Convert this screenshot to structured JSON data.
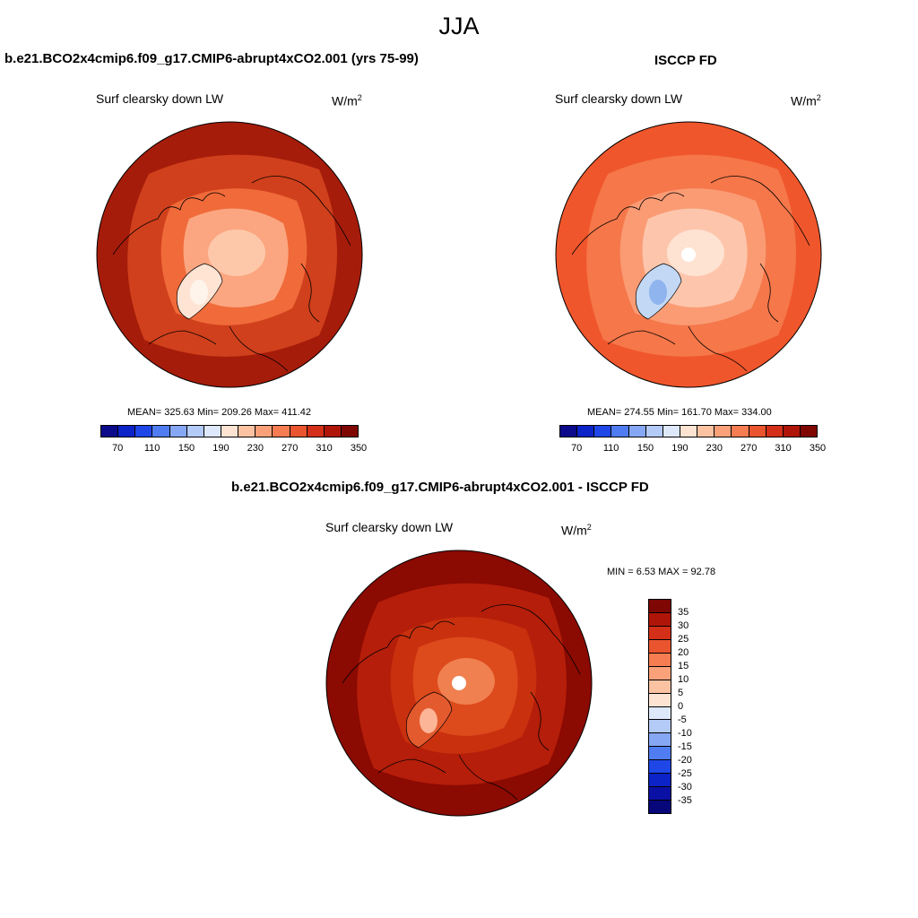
{
  "title": "JJA",
  "panels": [
    {
      "title": "b.e21.BCO2x4cmip6.f09_g17.CMIP6-abrupt4xCO2.001 (yrs 75-99)",
      "var_label": "Surf clearsky down LW",
      "unit_base": "W/m",
      "unit_exp": "2",
      "stats": "MEAN= 325.63  Min= 209.26  Max= 411.42",
      "colors": {
        "outer": "#a61c0a",
        "ring": "#d0401c",
        "mid": "#f06a3a",
        "inner": "#fba680",
        "center": "#fdc8aa",
        "greenland": "#ffe4d4",
        "greenland_core": "#fff4ec"
      }
    },
    {
      "title": "ISCCP FD",
      "var_label": "Surf clearsky down LW",
      "unit_base": "W/m",
      "unit_exp": "2",
      "stats": "MEAN= 274.55  Min= 161.70  Max= 334.00",
      "colors": {
        "outer": "#f0562c",
        "ring": "#f5774a",
        "mid": "#fa9b74",
        "inner": "#fdc6ac",
        "center": "#fee2d2",
        "greenland": "#c2d8f5",
        "greenland_core": "#8fb4ee"
      }
    },
    {
      "title": "b.e21.BCO2x4cmip6.f09_g17.CMIP6-abrupt4xCO2.001 - ISCCP FD",
      "var_label": "Surf clearsky down LW",
      "unit_base": "W/m",
      "unit_exp": "2",
      "stats": "MIN =   6.53 MAX =  92.78",
      "colors": {
        "outer": "#8b0a02",
        "ring": "#b51e0a",
        "mid": "#c9300e",
        "inner": "#dd4a1c",
        "center": "#f08050",
        "greenland": "#e35a2e",
        "greenland_core": "#fcb596"
      }
    }
  ],
  "colorbar_abs": {
    "colors": [
      "#0b0a8a",
      "#0b23c7",
      "#1f47e8",
      "#4f7cf0",
      "#86a7f3",
      "#b4caf7",
      "#dde9fb",
      "#fde3d2",
      "#fcc3a3",
      "#fba17a",
      "#f67c52",
      "#ea5530",
      "#d42f18",
      "#b01509",
      "#7e0703"
    ],
    "labels": [
      "70",
      "110",
      "150",
      "190",
      "230",
      "270",
      "310",
      "350"
    ]
  },
  "colorbar_diff": {
    "colors": [
      "#7e0703",
      "#b01509",
      "#d42f18",
      "#ea5530",
      "#f67c52",
      "#fba17a",
      "#fcc3a3",
      "#fde3d2",
      "#dde9fb",
      "#b4caf7",
      "#86a7f3",
      "#4f7cf0",
      "#1f47e8",
      "#0b23c7",
      "#0b10a5",
      "#07077a"
    ],
    "labels": [
      "35",
      "30",
      "25",
      "20",
      "15",
      "10",
      "5",
      "0",
      "-5",
      "-10",
      "-15",
      "-20",
      "-25",
      "-30",
      "-35"
    ]
  }
}
